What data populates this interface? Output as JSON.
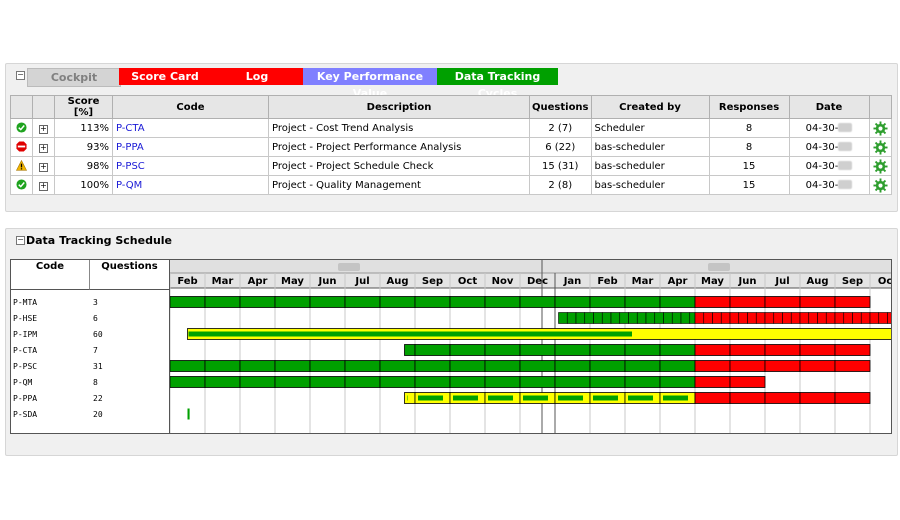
{
  "tabs": [
    {
      "label": "Cockpit",
      "bg": "#d4d4d4",
      "fg": "#808080"
    },
    {
      "label": "Score Card",
      "bg": "#ff0000",
      "fg": "#ffffff"
    },
    {
      "label": "Log",
      "bg": "#ff0000",
      "fg": "#ffffff"
    },
    {
      "label": "Key Performance Value",
      "bg": "#8080ff",
      "fg": "#ffffff"
    },
    {
      "label": "Data Tracking Cycles",
      "bg": "#00a000",
      "fg": "#ffffff"
    }
  ],
  "table": {
    "headers": {
      "score": "Score [%]",
      "code": "Code",
      "description": "Description",
      "questions": "Questions",
      "created_by": "Created by",
      "responses": "Responses",
      "date": "Date"
    },
    "rows": [
      {
        "status": "ok-icon",
        "expand": "+",
        "score": "113%",
        "code": "P-CTA",
        "description": "Project - Cost Trend Analysis",
        "questions": "2 (7)",
        "created_by": "Scheduler",
        "responses": "8",
        "date": "04-30-"
      },
      {
        "status": "stop-icon",
        "expand": "+",
        "score": "93%",
        "code": "P-PPA",
        "description": "Project - Project Performance Analysis",
        "questions": "6 (22)",
        "created_by": "bas-scheduler",
        "responses": "8",
        "date": "04-30-"
      },
      {
        "status": "warning-icon",
        "expand": "+",
        "score": "98%",
        "code": "P-PSC",
        "description": "Project - Project Schedule Check",
        "questions": "15 (31)",
        "created_by": "bas-scheduler",
        "responses": "15",
        "date": "04-30-"
      },
      {
        "status": "ok-icon",
        "expand": "+",
        "score": "100%",
        "code": "P-QM",
        "description": "Project - Quality Management",
        "questions": "2 (8)",
        "created_by": "bas-scheduler",
        "responses": "15",
        "date": "04-30-"
      }
    ]
  },
  "schedule": {
    "title": "Data Tracking Schedule",
    "col_code": "Code",
    "col_questions": "Questions",
    "months": [
      "Feb",
      "Mar",
      "Apr",
      "May",
      "Jun",
      "Jul",
      "Aug",
      "Sep",
      "Oct",
      "Nov",
      "Dec",
      "Jan",
      "Feb",
      "Mar",
      "Apr",
      "May",
      "Jun",
      "Jul",
      "Aug",
      "Sep",
      "Oct"
    ],
    "colors": {
      "green": "#00a000",
      "red": "#ff0000",
      "yellow": "#ffff00"
    },
    "rows": [
      {
        "code": "P-MTA",
        "questions": "3",
        "bars": [
          {
            "start": 0,
            "end": 15,
            "color": "green",
            "cells": "month"
          },
          {
            "start": 15,
            "end": 20,
            "color": "red",
            "cells": "month"
          }
        ]
      },
      {
        "code": "P-HSE",
        "questions": "6",
        "bars": [
          {
            "start": 11.1,
            "end": 15,
            "color": "green",
            "cells": "fine"
          },
          {
            "start": 15,
            "end": 20.7,
            "color": "red",
            "cells": "fine"
          }
        ]
      },
      {
        "code": "P-IPM",
        "questions": "60",
        "bars": [
          {
            "start": 0.5,
            "end": 20.7,
            "color": "yellow",
            "inner_green_end": 13.2
          }
        ]
      },
      {
        "code": "P-CTA",
        "questions": "7",
        "bars": [
          {
            "start": 6.7,
            "end": 15,
            "color": "green",
            "cells": "month"
          },
          {
            "start": 15,
            "end": 20,
            "color": "red",
            "cells": "month"
          }
        ]
      },
      {
        "code": "P-PSC",
        "questions": "31",
        "bars": [
          {
            "start": 0,
            "end": 15,
            "color": "green",
            "cells": "month"
          },
          {
            "start": 15,
            "end": 20,
            "color": "red",
            "cells": "month"
          }
        ]
      },
      {
        "code": "P-QM",
        "questions": "8",
        "bars": [
          {
            "start": 0,
            "end": 15,
            "color": "green",
            "cells": "month"
          },
          {
            "start": 15,
            "end": 17,
            "color": "red",
            "cells": "month"
          }
        ]
      },
      {
        "code": "P-PPA",
        "questions": "22",
        "bars": [
          {
            "start": 6.7,
            "end": 15,
            "color": "stripe",
            "cells": "month"
          },
          {
            "start": 15,
            "end": 20,
            "color": "red",
            "cells": "month"
          }
        ]
      },
      {
        "code": "P-SDA",
        "questions": "20",
        "bars": [
          {
            "start": 0.5,
            "end": 0.56,
            "color": "green"
          }
        ]
      }
    ]
  }
}
